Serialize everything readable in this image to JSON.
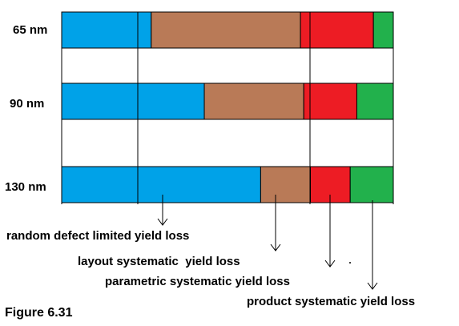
{
  "chart_data": {
    "type": "bar",
    "orientation": "horizontal",
    "stacked": true,
    "categories": [
      "65 nm",
      "90 nm",
      "130 nm"
    ],
    "series": [
      {
        "name": "random defect limited yield loss",
        "color": "#00A2E8",
        "values": [
          27,
          43,
          60
        ]
      },
      {
        "name": "layout systematic  yield loss",
        "color": "#B97A57",
        "values": [
          45,
          30,
          15
        ]
      },
      {
        "name": "parametric systematic yield loss",
        "color": "#ED1C24",
        "values": [
          22,
          16,
          12
        ]
      },
      {
        "name": "product systematic yield loss",
        "color": "#22B14C",
        "values": [
          6,
          11,
          13
        ]
      }
    ],
    "xlim": [
      0,
      100
    ],
    "grid": true,
    "legend": "annotations with arrows below the chart"
  },
  "figure": {
    "caption": "Figure 6.31"
  },
  "colors": {
    "grid": "#000000",
    "background": "#ffffff"
  }
}
